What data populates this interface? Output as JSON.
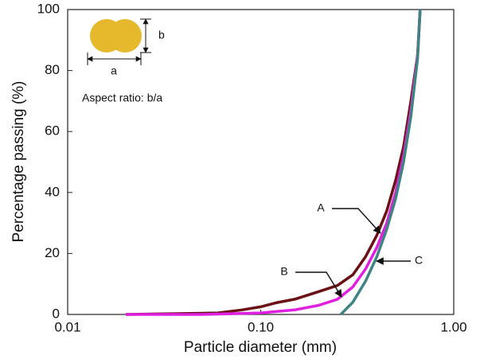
{
  "chart_data": {
    "type": "line",
    "xlabel": "Particle diameter (mm)",
    "ylabel": "Percentage passing (%)",
    "xscale": "log",
    "xlim": [
      0.01,
      1
    ],
    "ylim": [
      0,
      100
    ],
    "xticks": [
      0.01,
      {
        "value": 0.1,
        "label": "0.10"
      },
      {
        "value": 1,
        "label": "1.00"
      }
    ],
    "yticks": [
      0,
      20,
      40,
      60,
      80,
      100
    ],
    "grid": false,
    "series": [
      {
        "name": "A",
        "color": "#6b1014",
        "x": [
          0.02,
          0.04,
          0.06,
          0.08,
          0.1,
          0.12,
          0.15,
          0.2,
          0.25,
          0.3,
          0.35,
          0.4,
          0.45,
          0.5,
          0.55,
          0.6,
          0.65,
          0.67
        ],
        "values": [
          0,
          0.3,
          0.5,
          1.5,
          2.5,
          3.8,
          5,
          7.5,
          9.5,
          13,
          19,
          26,
          34,
          44,
          55,
          70,
          85,
          100
        ]
      },
      {
        "name": "B",
        "color": "#e020e0",
        "x": [
          0.02,
          0.05,
          0.1,
          0.15,
          0.2,
          0.25,
          0.3,
          0.35,
          0.4,
          0.45,
          0.5,
          0.55,
          0.6,
          0.65,
          0.67
        ],
        "values": [
          0,
          0,
          0.5,
          1.5,
          3,
          5,
          9,
          15,
          22,
          30,
          40,
          52,
          67,
          85,
          100
        ]
      },
      {
        "name": "C",
        "color": "#3f8383",
        "x": [
          0.26,
          0.3,
          0.35,
          0.4,
          0.45,
          0.5,
          0.55,
          0.6,
          0.65,
          0.67
        ],
        "values": [
          0,
          4,
          11,
          19,
          28,
          38,
          50,
          65,
          84,
          100
        ]
      }
    ],
    "inset": {
      "a": "a",
      "b": "b",
      "caption": "Aspect ratio: b/a"
    }
  }
}
